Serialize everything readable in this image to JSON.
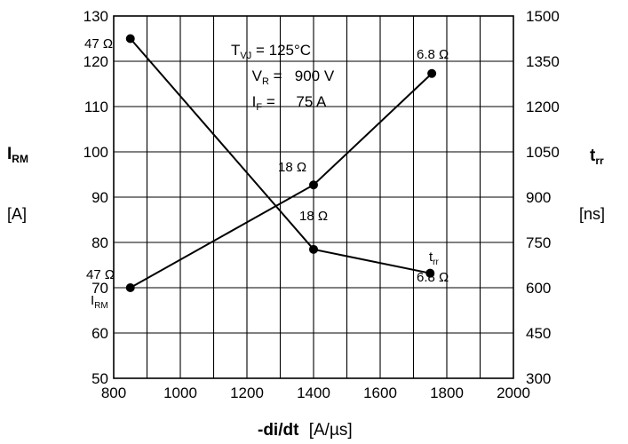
{
  "chart_data": {
    "type": "line",
    "xlabel": "-di/dt",
    "xunit": "[A/µs]",
    "xlim": [
      800,
      2000
    ],
    "x_ticks": [
      "800",
      "1000",
      "1200",
      "1400",
      "1600",
      "1800",
      "2000"
    ],
    "y_left": {
      "label_main": "I",
      "label_sub": "RM",
      "unit": "[A]",
      "ylim": [
        50,
        130
      ],
      "ticks": [
        "50",
        "60",
        "70",
        "80",
        "90",
        "100",
        "110",
        "120",
        "130"
      ]
    },
    "y_right": {
      "label_main": "t",
      "label_sub": "rr",
      "unit": "[ns]",
      "ylim": [
        300,
        1500
      ],
      "ticks": [
        "300",
        "450",
        "600",
        "750",
        "900",
        "1050",
        "1200",
        "1350",
        "1500"
      ]
    },
    "grid": true,
    "conditions": [
      {
        "main": "T",
        "sub": "VJ",
        "value": " = 125°C"
      },
      {
        "main": "V",
        "sub": "R",
        "value": " =   900 V"
      },
      {
        "main": "I",
        "sub": "F",
        "value": " =     75 A"
      }
    ],
    "series": [
      {
        "name_main": "I",
        "name_sub": "RM",
        "axis": "left",
        "x": [
          850,
          1400,
          1755
        ],
        "y": [
          70,
          92.7,
          117.3
        ],
        "point_labels": [
          "47 Ω",
          "18 Ω",
          "6.8 Ω"
        ]
      },
      {
        "name_main": "t",
        "name_sub": "rr",
        "axis": "right",
        "x": [
          850,
          1400,
          1750
        ],
        "y": [
          1425,
          727,
          648
        ],
        "point_labels": [
          "47 Ω",
          "18 Ω",
          "6.8 Ω"
        ]
      }
    ]
  }
}
